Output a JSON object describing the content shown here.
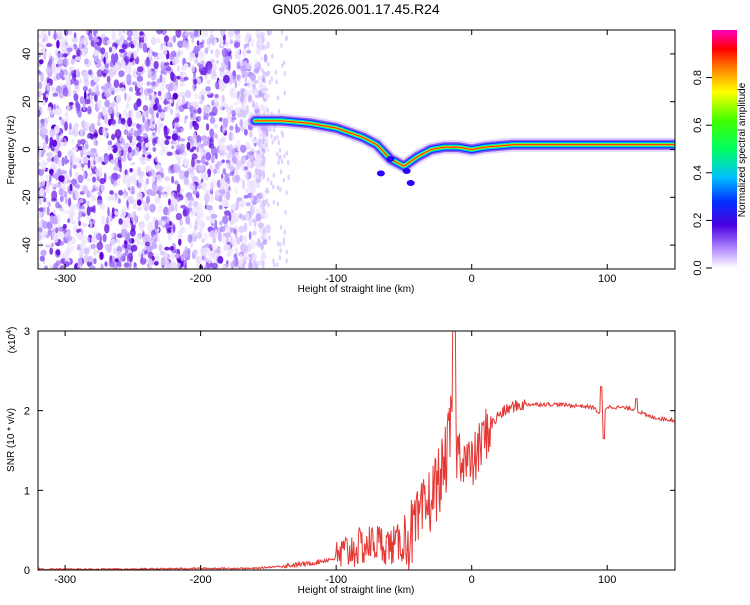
{
  "title": "GN05.2026.001.17.45.R24",
  "colors": {
    "snr_line": "#e53935",
    "axis": "#000000",
    "spectrum_noise": "#6a1be0",
    "track_core": "#ff2a00"
  },
  "chart_data": [
    {
      "type": "heatmap",
      "title": "GN05.2026.001.17.45.R24",
      "xlabel": "Height of straight line (km)",
      "ylabel": "Frequency (Hz)",
      "xlim": [
        -320,
        150
      ],
      "ylim": [
        -50,
        50
      ],
      "xticks": [
        -300,
        -200,
        -100,
        0,
        100
      ],
      "yticks": [
        -40,
        -20,
        0,
        20,
        40
      ],
      "colorbar": {
        "label": "Normalized spectral amplitude",
        "range": [
          0,
          1
        ],
        "ticks": [
          0.0,
          0.2,
          0.4,
          0.6,
          0.8
        ]
      },
      "track": {
        "x": [
          -160,
          -140,
          -120,
          -100,
          -90,
          -80,
          -70,
          -60,
          -50,
          -40,
          -30,
          -20,
          -10,
          0,
          10,
          30,
          60,
          90,
          120,
          150
        ],
        "y": [
          12,
          12,
          11,
          9,
          7,
          5,
          2,
          -4,
          -7,
          -3,
          0,
          1,
          1,
          0,
          1,
          2,
          2,
          2,
          2,
          2
        ]
      },
      "noise_region_x": [
        -320,
        -150
      ]
    },
    {
      "type": "line",
      "xlabel": "Height of straight line (km)",
      "ylabel": "SNR (10 * v/v)",
      "y_multiplier": "(x10",
      "y_multiplier_exp": "4",
      "y_multiplier_close": ")",
      "xlim": [
        -320,
        150
      ],
      "ylim": [
        0,
        3
      ],
      "xticks": [
        -300,
        -200,
        -100,
        0,
        100
      ],
      "yticks": [
        0,
        1,
        2,
        3
      ],
      "series": [
        {
          "name": "SNR",
          "x": [
            -320,
            -250,
            -200,
            -160,
            -140,
            -120,
            -100,
            -90,
            -80,
            -70,
            -60,
            -50,
            -40,
            -30,
            -20,
            -15,
            -10,
            0,
            10,
            20,
            30,
            40,
            60,
            80,
            90,
            95,
            100,
            110,
            120,
            130,
            140,
            150
          ],
          "y": [
            0.01,
            0.01,
            0.02,
            0.02,
            0.05,
            0.08,
            0.15,
            0.25,
            0.3,
            0.35,
            0.3,
            0.35,
            0.55,
            0.9,
            1.3,
            1.8,
            1.5,
            1.3,
            1.7,
            1.95,
            2.05,
            2.08,
            2.08,
            2.06,
            2.04,
            1.95,
            2.05,
            2.04,
            2.02,
            1.93,
            1.9,
            1.88
          ]
        }
      ]
    }
  ]
}
